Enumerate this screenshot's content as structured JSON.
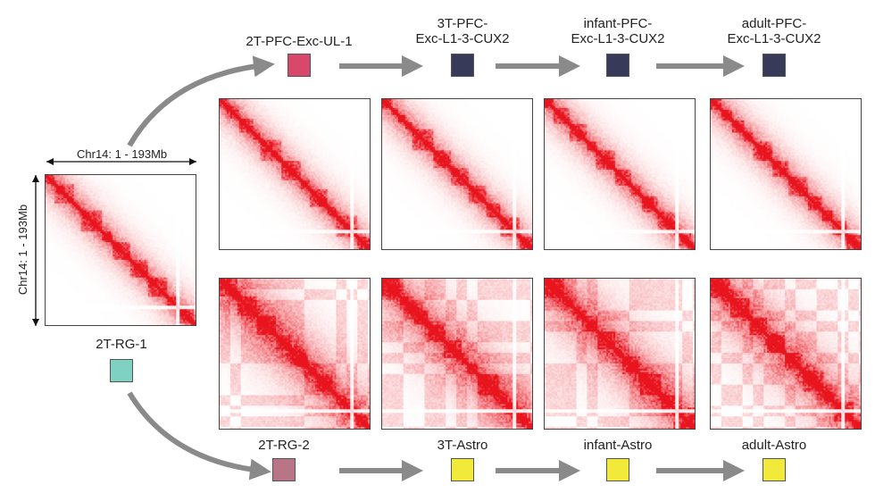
{
  "axis_label_x": "Chr14: 1 - 193Mb",
  "axis_label_y": "Chr14: 1 - 193Mb",
  "source": {
    "label": "2T-RG-1",
    "color": "#7fd1c1"
  },
  "top_row": [
    {
      "label": "2T-PFC-Exc-UL-1",
      "color": "#d9486a"
    },
    {
      "label": "3T-PFC-\nExc-L1-3-CUX2",
      "color": "#383a5a"
    },
    {
      "label": "infant-PFC-\nExc-L1-3-CUX2",
      "color": "#383a5a"
    },
    {
      "label": "adult-PFC-\nExc-L1-3-CUX2",
      "color": "#383a5a"
    }
  ],
  "bottom_row": [
    {
      "label": "2T-RG-2",
      "color": "#b87585"
    },
    {
      "label": "3T-Astro",
      "color": "#f2ea3a"
    },
    {
      "label": "infant-Astro",
      "color": "#f2ea3a"
    },
    {
      "label": "adult-Astro",
      "color": "#f2ea3a"
    }
  ],
  "colors": {
    "heatmap": "#e8141e",
    "arrow": "#8a8a8a"
  }
}
